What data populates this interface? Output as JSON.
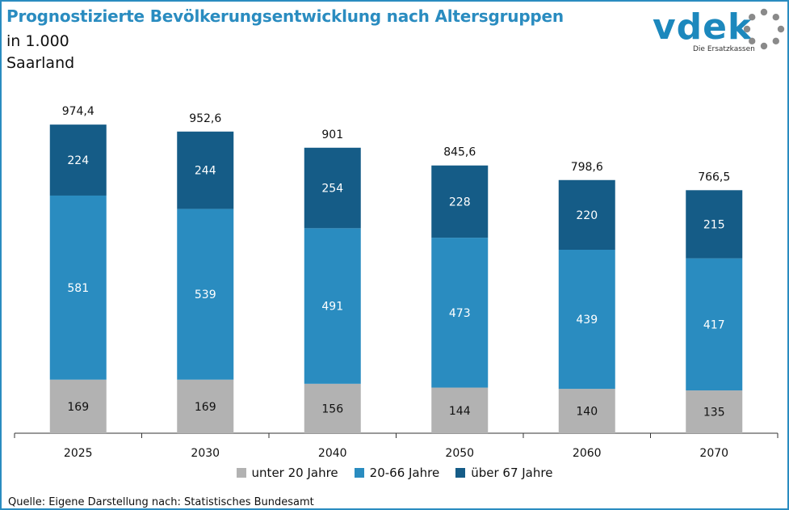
{
  "header": {
    "title": "Prognostizierte Bevölkerungsentwicklung nach Altersgruppen",
    "unit": "in 1.000",
    "region": "Saarland"
  },
  "logo": {
    "wordmark": "vdek",
    "tagline": "Die Ersatzkassen"
  },
  "source": "Quelle: Eigene Darstellung nach: Statistisches Bundesamt",
  "colors": {
    "accent": "#2a8cc0",
    "unter20": "#b2b2b2",
    "mid": "#2a8cc0",
    "ueber67": "#155c87"
  },
  "chart_data": {
    "type": "bar",
    "stacked": true,
    "categories": [
      "2025",
      "2030",
      "2040",
      "2050",
      "2060",
      "2070"
    ],
    "series": [
      {
        "name": "unter 20 Jahre",
        "values": [
          169,
          169,
          156,
          144,
          140,
          135
        ]
      },
      {
        "name": "20-66 Jahre",
        "values": [
          581,
          539,
          491,
          473,
          439,
          417
        ]
      },
      {
        "name": "über 67 Jahre",
        "values": [
          224,
          244,
          254,
          228,
          220,
          215
        ]
      }
    ],
    "totals": [
      "974,4",
      "952,6",
      "901",
      "845,6",
      "798,6",
      "766,5"
    ],
    "ylim": [
      0,
      974.4
    ],
    "grid": false,
    "legend_position": "bottom"
  }
}
